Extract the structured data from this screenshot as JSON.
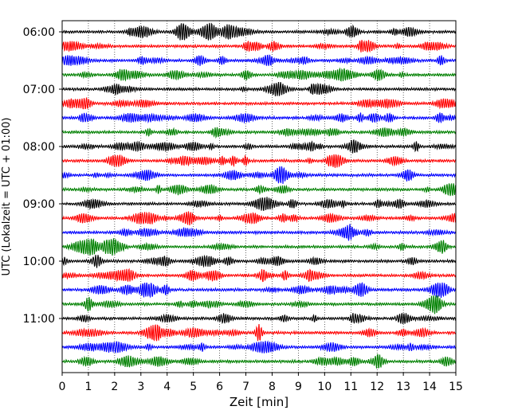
{
  "chart_data": {
    "type": "line",
    "title": "",
    "xlabel": "Zeit  [min]",
    "ylabel": "UTC (Lokalzeit = UTC + 01:00)",
    "xlim": [
      0,
      15
    ],
    "x_ticks": [
      "0",
      "1",
      "2",
      "3",
      "4",
      "5",
      "6",
      "7",
      "8",
      "9",
      "10",
      "11",
      "12",
      "13",
      "14",
      "15"
    ],
    "y_ticks": [
      "06:00",
      "07:00",
      "08:00",
      "09:00",
      "10:00",
      "11:00"
    ],
    "grid": "vertical-dotted",
    "trace_interval_min": 15,
    "trace_count": 24,
    "trace_colors": [
      "#000000",
      "#ff0000",
      "#0000ff",
      "#008000"
    ],
    "traces": [
      {
        "start": "06:00",
        "color": "#000000"
      },
      {
        "start": "06:15",
        "color": "#ff0000"
      },
      {
        "start": "06:30",
        "color": "#0000ff"
      },
      {
        "start": "06:45",
        "color": "#008000"
      },
      {
        "start": "07:00",
        "color": "#000000"
      },
      {
        "start": "07:15",
        "color": "#ff0000"
      },
      {
        "start": "07:30",
        "color": "#0000ff"
      },
      {
        "start": "07:45",
        "color": "#008000"
      },
      {
        "start": "08:00",
        "color": "#000000"
      },
      {
        "start": "08:15",
        "color": "#ff0000"
      },
      {
        "start": "08:30",
        "color": "#0000ff"
      },
      {
        "start": "08:45",
        "color": "#008000"
      },
      {
        "start": "09:00",
        "color": "#000000"
      },
      {
        "start": "09:15",
        "color": "#ff0000"
      },
      {
        "start": "09:30",
        "color": "#0000ff"
      },
      {
        "start": "09:45",
        "color": "#008000"
      },
      {
        "start": "10:00",
        "color": "#000000"
      },
      {
        "start": "10:15",
        "color": "#ff0000"
      },
      {
        "start": "10:30",
        "color": "#0000ff"
      },
      {
        "start": "10:45",
        "color": "#008000"
      },
      {
        "start": "11:00",
        "color": "#000000"
      },
      {
        "start": "11:15",
        "color": "#ff0000"
      },
      {
        "start": "11:30",
        "color": "#0000ff"
      },
      {
        "start": "11:45",
        "color": "#008000"
      }
    ]
  }
}
